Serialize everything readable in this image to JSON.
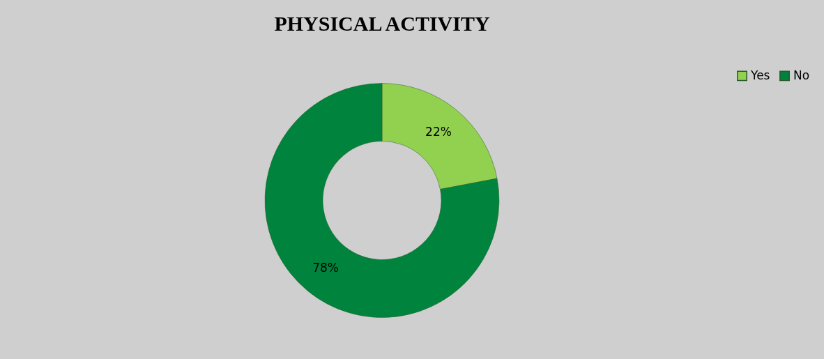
{
  "chart_data": {
    "type": "donut",
    "title": "PHYSICAL ACTIVITY",
    "categories": [
      "Yes",
      "No"
    ],
    "values": [
      22,
      78
    ],
    "value_labels": [
      "22%",
      "78%"
    ],
    "colors": [
      "#92d050",
      "#00843d"
    ],
    "legend": "right"
  }
}
